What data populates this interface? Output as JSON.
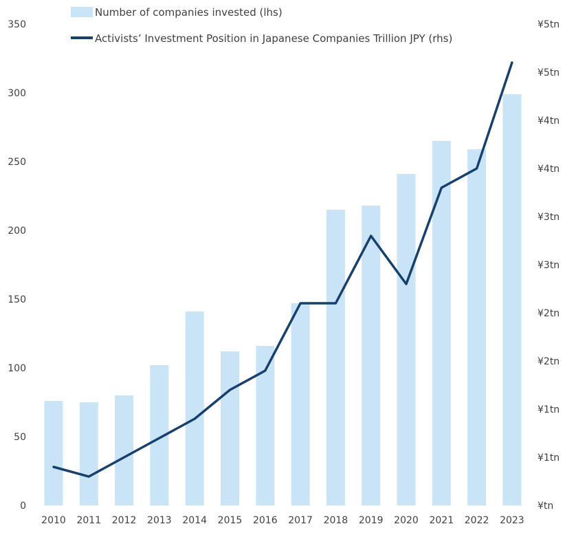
{
  "chart_data": {
    "type": "bar+line",
    "categories": [
      "2010",
      "2011",
      "2012",
      "2013",
      "2014",
      "2015",
      "2016",
      "2017",
      "2018",
      "2019",
      "2020",
      "2021",
      "2022",
      "2023"
    ],
    "series": [
      {
        "name": "Number of companies invested (lhs)",
        "type": "bar",
        "axis": "left",
        "color": "#c9e3f7",
        "values": [
          76,
          75,
          80,
          102,
          141,
          112,
          116,
          147,
          215,
          218,
          241,
          265,
          259,
          299
        ]
      },
      {
        "name": "Activists’ Investment Position in Japanese Companies Trillion JPY (rhs)",
        "type": "line",
        "axis": "right",
        "color": "#17406d",
        "values": [
          0.4,
          0.3,
          0.5,
          0.7,
          0.9,
          1.2,
          1.4,
          2.1,
          2.1,
          2.8,
          2.3,
          3.3,
          3.5,
          4.6
        ]
      }
    ],
    "y_left": {
      "min": 0,
      "max": 350,
      "ticks": [
        0,
        50,
        100,
        150,
        200,
        250,
        300,
        350
      ],
      "tick_labels": [
        "0",
        "50",
        "100",
        "150",
        "200",
        "250",
        "300",
        "350"
      ]
    },
    "y_right": {
      "min": 0,
      "max": 5,
      "ticks": [
        0,
        0.5,
        1,
        1.5,
        2,
        2.5,
        3,
        3.5,
        4,
        4.5,
        5
      ],
      "tick_labels": [
        "¥tn",
        "¥1tn",
        "¥1tn",
        "¥2tn",
        "¥2tn",
        "¥3tn",
        "¥3tn",
        "¥4tn",
        "¥4tn",
        "¥5tn",
        "¥5tn"
      ]
    },
    "legend_position": "top-left",
    "grid": false,
    "title": ""
  }
}
